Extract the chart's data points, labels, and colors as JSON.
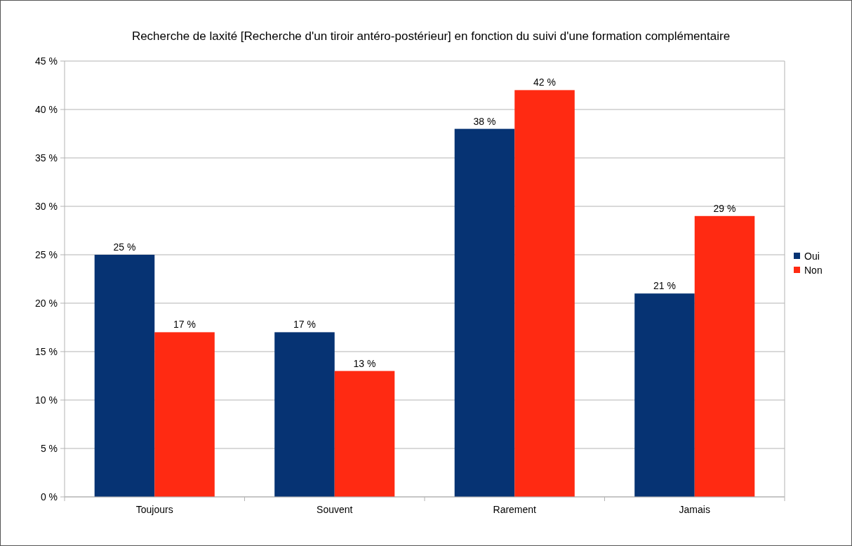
{
  "chart_data": {
    "type": "bar",
    "title": "Recherche de laxité  [Recherche d'un tiroir antéro-postérieur] en fonction du suivi d'une formation complémentaire",
    "categories": [
      "Toujours",
      "Souvent",
      "Rarement",
      "Jamais"
    ],
    "series": [
      {
        "name": "Oui",
        "color": "#063373",
        "values": [
          25,
          17,
          38,
          21
        ],
        "value_labels": [
          "25 %",
          "17 %",
          "38 %",
          "21 %"
        ]
      },
      {
        "name": "Non",
        "color": "#ff2a12",
        "values": [
          17,
          13,
          42,
          29
        ],
        "value_labels": [
          "17 %",
          "13 %",
          "42 %",
          "29 %"
        ]
      }
    ],
    "ylim": [
      0,
      45
    ],
    "yticks": [
      {
        "value": 0,
        "label": "0 %"
      },
      {
        "value": 5,
        "label": "5 %"
      },
      {
        "value": 10,
        "label": "10 %"
      },
      {
        "value": 15,
        "label": "15 %"
      },
      {
        "value": 20,
        "label": "20 %"
      },
      {
        "value": 25,
        "label": "25 %"
      },
      {
        "value": 30,
        "label": "30 %"
      },
      {
        "value": 35,
        "label": "35 %"
      },
      {
        "value": 40,
        "label": "40 %"
      },
      {
        "value": 45,
        "label": "45 %"
      }
    ],
    "grid": "y",
    "legend": "right"
  }
}
